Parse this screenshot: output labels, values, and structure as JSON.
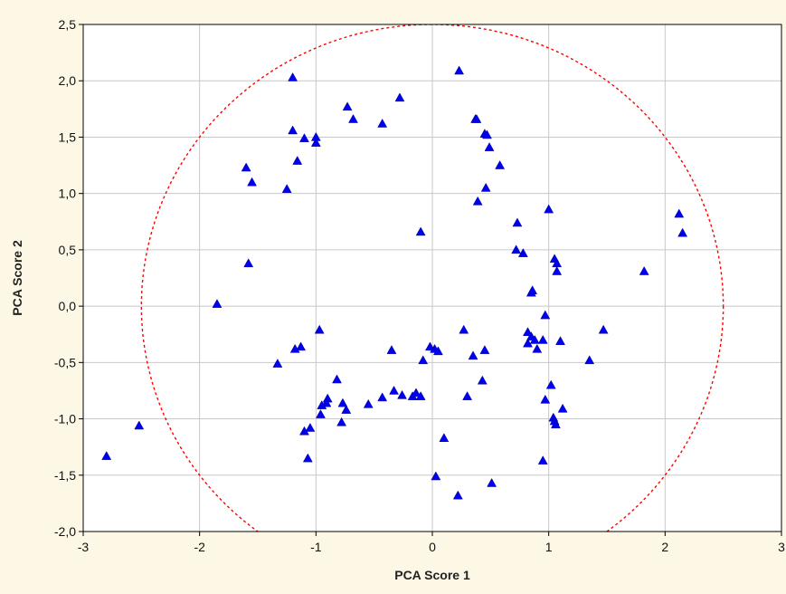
{
  "chart_data": {
    "type": "scatter",
    "xlabel": "PCA Score 1",
    "ylabel": "PCA Score 2",
    "xlim": [
      -3,
      3
    ],
    "ylim": [
      -2,
      2.5
    ],
    "x_ticks": [
      -3,
      -2,
      -1,
      0,
      1,
      2,
      3
    ],
    "y_ticks": [
      -2,
      -1.5,
      -1,
      -0.5,
      0,
      0.5,
      1,
      1.5,
      2,
      2.5
    ],
    "x_tick_labels": [
      "-3",
      "-2",
      "-1",
      "0",
      "1",
      "2",
      "3"
    ],
    "y_tick_labels": [
      "-2,0",
      "-1,5",
      "-1,0",
      "-0,5",
      "0,0",
      "0,5",
      "1,0",
      "1,5",
      "2,0",
      "2,5"
    ],
    "grid": true,
    "marker": "triangle",
    "colors": {
      "background": "#fdf8e6",
      "plot_area": "#ffffff",
      "points": "#0000ee",
      "ellipse": "#ff0000",
      "grid": "#c8c8c8"
    },
    "confidence_ellipse": {
      "center": [
        0,
        0
      ],
      "radius_x": 2.5,
      "radius_y": 2.5
    },
    "points": [
      [
        -2.8,
        -1.33
      ],
      [
        -2.52,
        -1.06
      ],
      [
        -1.85,
        0.02
      ],
      [
        -1.6,
        1.23
      ],
      [
        -1.58,
        0.38
      ],
      [
        -1.55,
        1.1
      ],
      [
        -1.25,
        1.04
      ],
      [
        -1.2,
        2.03
      ],
      [
        -1.2,
        1.56
      ],
      [
        -1.16,
        1.29
      ],
      [
        -1.1,
        1.49
      ],
      [
        -1.0,
        1.5
      ],
      [
        -1.0,
        1.45
      ],
      [
        -0.73,
        1.77
      ],
      [
        -0.68,
        1.66
      ],
      [
        -0.43,
        1.62
      ],
      [
        -0.28,
        1.85
      ],
      [
        0.23,
        2.09
      ],
      [
        0.37,
        1.66
      ],
      [
        0.38,
        1.66
      ],
      [
        0.45,
        1.53
      ],
      [
        0.47,
        1.52
      ],
      [
        0.49,
        1.41
      ],
      [
        0.58,
        1.25
      ],
      [
        0.39,
        0.93
      ],
      [
        0.46,
        1.05
      ],
      [
        -0.1,
        0.66
      ],
      [
        0.73,
        0.74
      ],
      [
        1.0,
        0.86
      ],
      [
        0.72,
        0.5
      ],
      [
        0.78,
        0.47
      ],
      [
        1.05,
        0.42
      ],
      [
        1.07,
        0.38
      ],
      [
        1.07,
        0.31
      ],
      [
        0.85,
        0.12
      ],
      [
        0.86,
        0.14
      ],
      [
        2.12,
        0.82
      ],
      [
        2.15,
        0.65
      ],
      [
        1.82,
        0.31
      ],
      [
        1.47,
        -0.21
      ],
      [
        1.35,
        -0.48
      ],
      [
        0.97,
        -0.08
      ],
      [
        1.1,
        -0.31
      ],
      [
        0.82,
        -0.23
      ],
      [
        0.82,
        -0.33
      ],
      [
        0.85,
        -0.27
      ],
      [
        0.88,
        -0.3
      ],
      [
        0.9,
        -0.38
      ],
      [
        0.95,
        -0.3
      ],
      [
        1.02,
        -0.7
      ],
      [
        0.97,
        -0.83
      ],
      [
        1.12,
        -0.91
      ],
      [
        1.04,
        -0.99
      ],
      [
        1.05,
        -1.02
      ],
      [
        1.06,
        -1.05
      ],
      [
        0.95,
        -1.37
      ],
      [
        0.27,
        -0.21
      ],
      [
        0.45,
        -0.39
      ],
      [
        0.35,
        -0.44
      ],
      [
        0.43,
        -0.66
      ],
      [
        0.3,
        -0.8
      ],
      [
        -0.02,
        -0.36
      ],
      [
        0.02,
        -0.38
      ],
      [
        0.05,
        -0.4
      ],
      [
        -0.08,
        -0.48
      ],
      [
        -0.35,
        -0.39
      ],
      [
        -0.33,
        -0.75
      ],
      [
        -0.26,
        -0.79
      ],
      [
        -0.17,
        -0.8
      ],
      [
        -0.14,
        -0.77
      ],
      [
        -0.1,
        -0.8
      ],
      [
        -0.43,
        -0.81
      ],
      [
        -0.55,
        -0.87
      ],
      [
        0.1,
        -1.17
      ],
      [
        0.03,
        -1.51
      ],
      [
        0.22,
        -1.68
      ],
      [
        0.51,
        -1.57
      ],
      [
        -0.97,
        -0.21
      ],
      [
        -1.13,
        -0.36
      ],
      [
        -1.18,
        -0.38
      ],
      [
        -1.33,
        -0.51
      ],
      [
        -0.82,
        -0.65
      ],
      [
        -0.9,
        -0.82
      ],
      [
        -0.91,
        -0.86
      ],
      [
        -0.95,
        -0.88
      ],
      [
        -0.96,
        -0.96
      ],
      [
        -0.77,
        -0.86
      ],
      [
        -0.74,
        -0.92
      ],
      [
        -0.78,
        -1.03
      ],
      [
        -1.05,
        -1.08
      ],
      [
        -1.1,
        -1.11
      ],
      [
        -1.07,
        -1.35
      ]
    ]
  }
}
